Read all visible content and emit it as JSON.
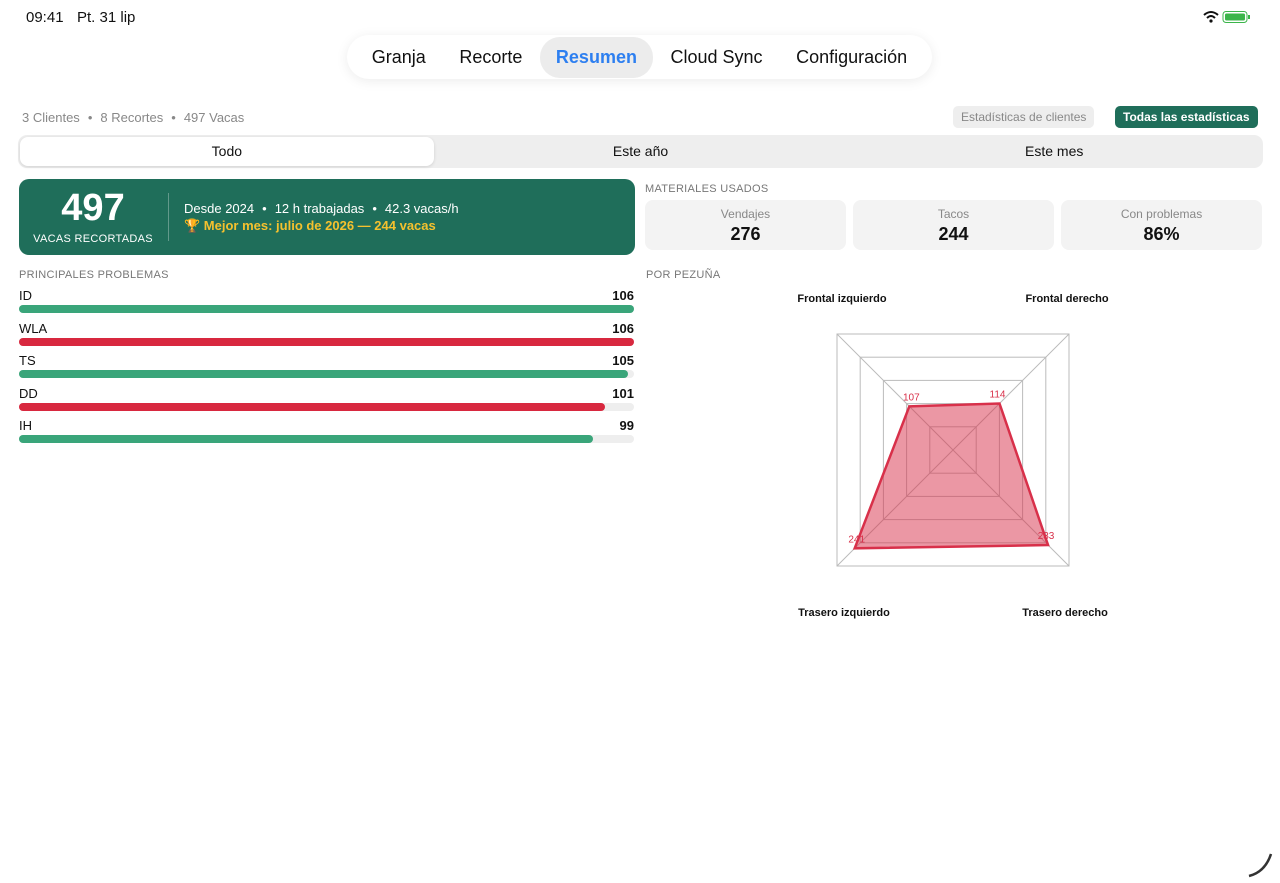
{
  "status_bar": {
    "time": "09:41",
    "date": "Pt. 31 lip"
  },
  "tabs": [
    {
      "label": "Granja",
      "selected": false
    },
    {
      "label": "Recorte",
      "selected": false
    },
    {
      "label": "Resumen",
      "selected": true
    },
    {
      "label": "Cloud Sync",
      "selected": false
    },
    {
      "label": "Configuración",
      "selected": false
    }
  ],
  "summary": [
    "3 Clientes",
    "8 Recortes",
    "497 Vacas"
  ],
  "stat_buttons": [
    {
      "label": "Estadísticas de clientes",
      "selected": false
    },
    {
      "label": "Todas las estadísticas",
      "selected": true
    }
  ],
  "periods": [
    {
      "label": "Todo",
      "selected": true
    },
    {
      "label": "Este año",
      "selected": false
    },
    {
      "label": "Este mes",
      "selected": false
    }
  ],
  "hero": {
    "value": 497,
    "label": "VACAS RECORTADAS",
    "details": [
      "Desde 2024",
      "12 h trabajadas",
      "42.3 vacas/h"
    ],
    "best": "🏆 Mejor mes: julio de 2026 — 244 vacas"
  },
  "materials": {
    "title": "MATERIALES USADOS",
    "items": [
      {
        "label": "Vendajes",
        "value": 276
      },
      {
        "label": "Tacos",
        "value": 244
      },
      {
        "label": "Con problemas",
        "value": "86%"
      }
    ]
  },
  "problems": {
    "title": "PRINCIPALES PROBLEMAS",
    "items": [
      {
        "label": "ID",
        "value": 106,
        "color": "#3aa57a"
      },
      {
        "label": "WLA",
        "value": 106,
        "color": "#d8283f"
      },
      {
        "label": "TS",
        "value": 105,
        "color": "#3aa57a"
      },
      {
        "label": "DD",
        "value": 101,
        "color": "#d8283f"
      },
      {
        "label": "IH",
        "value": 99,
        "color": "#3aa57a"
      }
    ]
  },
  "hooves": {
    "title": "POR PEZUÑA",
    "color": "#d8304a",
    "items": [
      {
        "label": "Frontal izquierdo",
        "value": 107
      },
      {
        "label": "Frontal derecho",
        "value": 114
      },
      {
        "label": "Trasero izquierdo",
        "value": 241
      },
      {
        "label": "Trasero derecho",
        "value": 233
      }
    ]
  }
}
